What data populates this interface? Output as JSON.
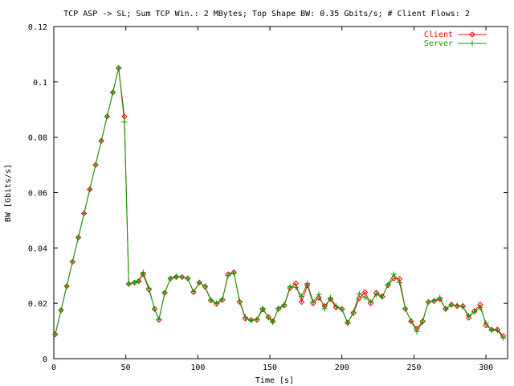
{
  "chart_data": {
    "type": "line",
    "title": "TCP ASP -> SL; Sum TCP Win.: 2 MBytes; Top Shape BW: 0.35 Gbits/s; # Client Flows: 2",
    "xlabel": "Time [s]",
    "ylabel": "BW [Gbits/s]",
    "xlim": [
      0,
      315
    ],
    "ylim": [
      0,
      0.12
    ],
    "xticks": [
      0,
      50,
      100,
      150,
      200,
      250,
      300
    ],
    "yticks": [
      0,
      0.02,
      0.04,
      0.06,
      0.08,
      0.1,
      0.12
    ],
    "xtick_labels": [
      "0",
      "50",
      "100",
      "150",
      "200",
      "250",
      "300"
    ],
    "ytick_labels": [
      "0",
      "0.02",
      "0.04",
      "0.06",
      "0.08",
      "0.1",
      "0.12"
    ],
    "legend_position": "top-right",
    "grid": false,
    "series": [
      {
        "name": "Client",
        "color": "#ff0000",
        "marker": "diamond",
        "x": [
          1,
          5,
          9,
          13,
          17,
          21,
          25,
          29,
          33,
          37,
          41,
          45,
          49,
          52,
          56,
          59,
          62,
          66,
          70,
          73,
          77,
          81,
          85,
          89,
          93,
          97,
          101,
          105,
          109,
          113,
          117,
          121,
          125,
          129,
          133,
          137,
          141,
          145,
          149,
          152,
          156,
          160,
          164,
          168,
          172,
          176,
          180,
          184,
          188,
          192,
          196,
          200,
          204,
          208,
          212,
          216,
          220,
          224,
          228,
          232,
          236,
          240,
          244,
          248,
          252,
          256,
          260,
          264,
          268,
          272,
          276,
          280,
          284,
          288,
          292,
          296,
          300,
          304,
          308,
          312
        ],
        "values": [
          0.0088,
          0.0175,
          0.0262,
          0.035,
          0.0438,
          0.0525,
          0.0612,
          0.07,
          0.0787,
          0.0875,
          0.0962,
          0.105,
          0.0875,
          0.027,
          0.0275,
          0.028,
          0.0305,
          0.025,
          0.018,
          0.014,
          0.0238,
          0.029,
          0.0295,
          0.0295,
          0.029,
          0.024,
          0.0275,
          0.026,
          0.021,
          0.0198,
          0.0212,
          0.0305,
          0.0312,
          0.0205,
          0.0145,
          0.014,
          0.014,
          0.0178,
          0.015,
          0.0135,
          0.018,
          0.0192,
          0.0255,
          0.0272,
          0.0205,
          0.0265,
          0.02,
          0.022,
          0.019,
          0.0215,
          0.0185,
          0.018,
          0.013,
          0.0165,
          0.0218,
          0.024,
          0.02,
          0.0238,
          0.0225,
          0.0265,
          0.029,
          0.0288,
          0.018,
          0.0135,
          0.0108,
          0.0135,
          0.0205,
          0.0208,
          0.0215,
          0.018,
          0.0195,
          0.019,
          0.019,
          0.0148,
          0.0172,
          0.0195,
          0.012,
          0.0105,
          0.0105,
          0.0082
        ]
      },
      {
        "name": "Server",
        "color": "#00a000",
        "marker": "plus",
        "x": [
          1,
          5,
          9,
          13,
          17,
          21,
          25,
          29,
          33,
          37,
          41,
          45,
          49,
          52,
          56,
          59,
          62,
          66,
          70,
          73,
          77,
          81,
          85,
          89,
          93,
          97,
          101,
          105,
          109,
          113,
          117,
          121,
          125,
          129,
          133,
          137,
          141,
          145,
          149,
          152,
          156,
          160,
          164,
          168,
          172,
          176,
          180,
          184,
          188,
          192,
          196,
          200,
          204,
          208,
          212,
          216,
          220,
          224,
          228,
          232,
          236,
          240,
          244,
          248,
          252,
          256,
          260,
          264,
          268,
          272,
          276,
          280,
          284,
          288,
          292,
          296,
          300,
          304,
          308,
          312
        ],
        "values": [
          0.0088,
          0.0175,
          0.0262,
          0.035,
          0.0438,
          0.0525,
          0.0612,
          0.07,
          0.0787,
          0.0875,
          0.0962,
          0.105,
          0.0855,
          0.027,
          0.0275,
          0.028,
          0.0312,
          0.0255,
          0.0178,
          0.0142,
          0.0238,
          0.029,
          0.0298,
          0.0295,
          0.029,
          0.0242,
          0.0275,
          0.0262,
          0.0212,
          0.02,
          0.0215,
          0.03,
          0.031,
          0.0208,
          0.015,
          0.0138,
          0.0142,
          0.0182,
          0.0148,
          0.0132,
          0.0182,
          0.0195,
          0.026,
          0.0258,
          0.0225,
          0.0272,
          0.0205,
          0.0232,
          0.018,
          0.022,
          0.019,
          0.0178,
          0.0128,
          0.0168,
          0.0235,
          0.0222,
          0.0205,
          0.0232,
          0.0222,
          0.0268,
          0.0305,
          0.0275,
          0.018,
          0.0135,
          0.0098,
          0.0132,
          0.0205,
          0.021,
          0.022,
          0.0178,
          0.0195,
          0.0192,
          0.0188,
          0.0155,
          0.0168,
          0.0185,
          0.0128,
          0.0102,
          0.0102,
          0.0075
        ]
      }
    ]
  }
}
